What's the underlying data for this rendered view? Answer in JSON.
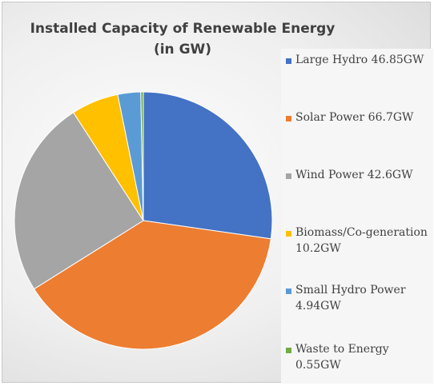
{
  "chart_data": {
    "type": "pie",
    "title": "Installed Capacity of Renewable Energy (in GW)",
    "categories": [
      "Large Hydro",
      "Solar Power",
      "Wind Power",
      "Biomass/Co-generation",
      "Small Hydro Power",
      "Waste to Energy"
    ],
    "values": [
      46.85,
      66.7,
      42.6,
      10.2,
      4.94,
      0.55
    ],
    "data_labels": [
      "Large Hydro 46.85GW",
      "Solar Power 66.7GW",
      "Wind Power 42.6GW",
      "Biomass/Co-generation 10.2GW",
      "Small Hydro Power 4.94GW",
      "Waste to Energy 0.55GW"
    ],
    "colors": [
      "#4472c4",
      "#ed7d31",
      "#a5a5a5",
      "#ffc000",
      "#5b9bd5",
      "#70ad47"
    ],
    "legend_position": "right"
  },
  "legend": {
    "items": [
      {
        "text": "Large Hydro 46.85GW",
        "color": "#4472c4"
      },
      {
        "text": "Solar Power 66.7GW",
        "color": "#ed7d31"
      },
      {
        "text": "Wind Power 42.6GW",
        "color": "#a5a5a5"
      },
      {
        "text": "Biomass/Co-generation 10.2GW",
        "color": "#ffc000"
      },
      {
        "text": "Small Hydro Power 4.94GW",
        "color": "#5b9bd5"
      },
      {
        "text": "Waste to Energy 0.55GW",
        "color": "#70ad47"
      }
    ]
  }
}
